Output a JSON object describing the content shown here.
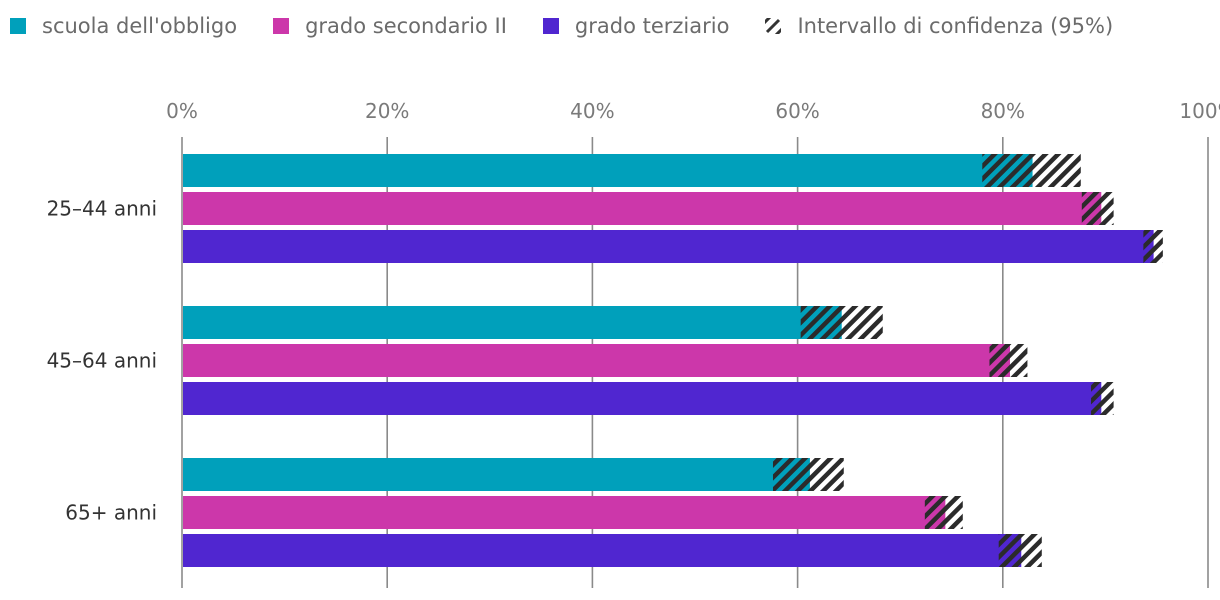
{
  "chart_data": {
    "type": "bar",
    "orientation": "horizontal",
    "title": "",
    "xlabel": "",
    "ylabel": "",
    "xlim": [
      0,
      100
    ],
    "x_tick_labels": [
      "0%",
      "20%",
      "40%",
      "60%",
      "80%",
      "100%"
    ],
    "x_tick_values": [
      0,
      20,
      40,
      60,
      80,
      100
    ],
    "grid": true,
    "legend_position": "top-left",
    "categories": [
      "25–44 anni",
      "45–64 anni",
      "65+ anni"
    ],
    "series": [
      {
        "name": "scuola dell'obbligo",
        "color": "#00a0bb",
        "values": [
          82.9,
          64.3,
          61.2
        ],
        "ci_low": [
          78.0,
          60.3,
          57.6
        ],
        "ci_high": [
          87.6,
          68.3,
          64.5
        ]
      },
      {
        "name": "grado secondario II",
        "color": "#cc37aa",
        "values": [
          89.6,
          80.7,
          74.4
        ],
        "ci_low": [
          87.7,
          78.7,
          72.4
        ],
        "ci_high": [
          90.8,
          82.4,
          76.1
        ]
      },
      {
        "name": "grado terziario",
        "color": "#5026d0",
        "values": [
          94.7,
          89.6,
          81.8
        ],
        "ci_low": [
          93.7,
          88.6,
          79.6
        ],
        "ci_high": [
          95.6,
          90.8,
          83.8
        ]
      }
    ],
    "ci_legend_label": "Intervallo di confidenza (95%)"
  }
}
